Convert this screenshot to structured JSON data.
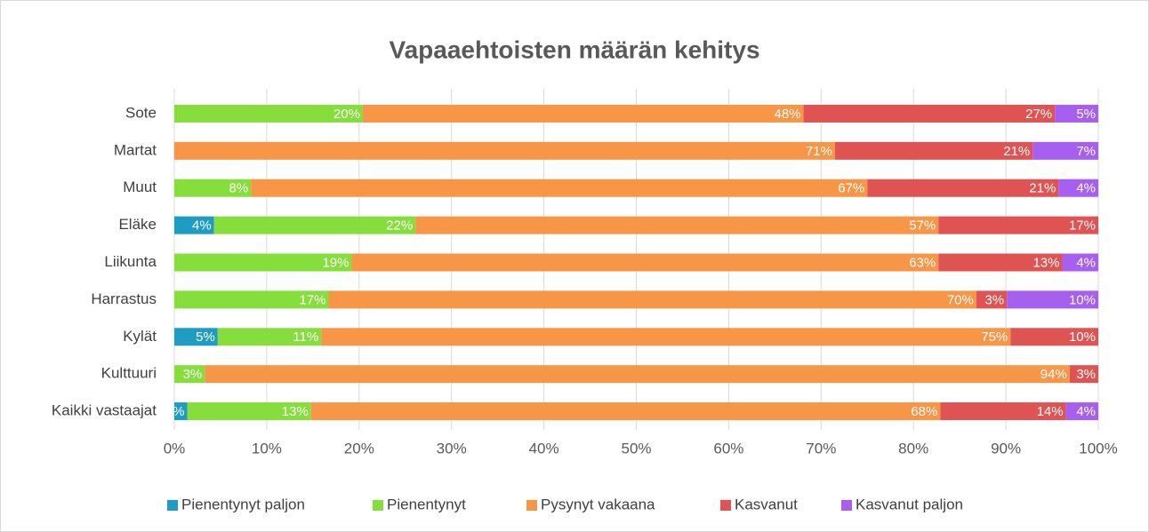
{
  "chart_data": {
    "type": "stacked_bar_horizontal",
    "title": "Vapaaehtoisten määrän kehitys",
    "categories": [
      "Sote",
      "Martat",
      "Muut",
      "Eläke",
      "Liikunta",
      "Harrastus",
      "Kylät",
      "Kulttuuri",
      "Kaikki vastaajat"
    ],
    "series": [
      {
        "name": "Pienentynyt paljon",
        "color": "#1f9cc2",
        "values": [
          null,
          null,
          null,
          4.3,
          null,
          null,
          4.7,
          null,
          1.4
        ],
        "value_labels": [
          null,
          null,
          null,
          "4%",
          null,
          null,
          "5%",
          null,
          "1%"
        ]
      },
      {
        "name": "Pienentynyt",
        "color": "#86de3c",
        "values": [
          20.4,
          null,
          8.3,
          21.8,
          19.2,
          16.7,
          11.2,
          3.3,
          13.4
        ],
        "value_labels": [
          "20%",
          null,
          "8%",
          "22%",
          "19%",
          "17%",
          "11%",
          "3%",
          "13%"
        ]
      },
      {
        "name": "Pysynyt vakaana",
        "color": "#f79646",
        "values": [
          47.7,
          71.5,
          66.7,
          56.6,
          63.5,
          70.1,
          74.6,
          93.6,
          68.1
        ],
        "value_labels": [
          "48%",
          "71%",
          "67%",
          "57%",
          "63%",
          "70%",
          "75%",
          "94%",
          "68%"
        ]
      },
      {
        "name": "Kasvanut",
        "color": "#e05353",
        "values": [
          27.2,
          21.4,
          20.7,
          17.3,
          13.4,
          3.3,
          9.5,
          3.1,
          13.6
        ],
        "value_labels": [
          "27%",
          "21%",
          "21%",
          "17%",
          "13%",
          "3%",
          "10%",
          "3%",
          "14%"
        ]
      },
      {
        "name": "Kasvanut paljon",
        "color": "#a75ff0",
        "values": [
          4.7,
          7.1,
          4.3,
          null,
          3.9,
          9.9,
          null,
          null,
          3.5
        ],
        "value_labels": [
          "5%",
          "7%",
          "4%",
          null,
          "4%",
          "10%",
          null,
          null,
          "4%"
        ]
      }
    ],
    "xlim": [
      0,
      100
    ],
    "xticks": [
      {
        "value": 0,
        "label": "0%"
      },
      {
        "value": 10,
        "label": "10%"
      },
      {
        "value": 20,
        "label": "20%"
      },
      {
        "value": 30,
        "label": "30%"
      },
      {
        "value": 40,
        "label": "40%"
      },
      {
        "value": 50,
        "label": "50%"
      },
      {
        "value": 60,
        "label": "60%"
      },
      {
        "value": 70,
        "label": "70%"
      },
      {
        "value": 80,
        "label": "80%"
      },
      {
        "value": 90,
        "label": "90%"
      },
      {
        "value": 100,
        "label": "100%"
      }
    ],
    "grid": true,
    "legend": "bottom"
  }
}
